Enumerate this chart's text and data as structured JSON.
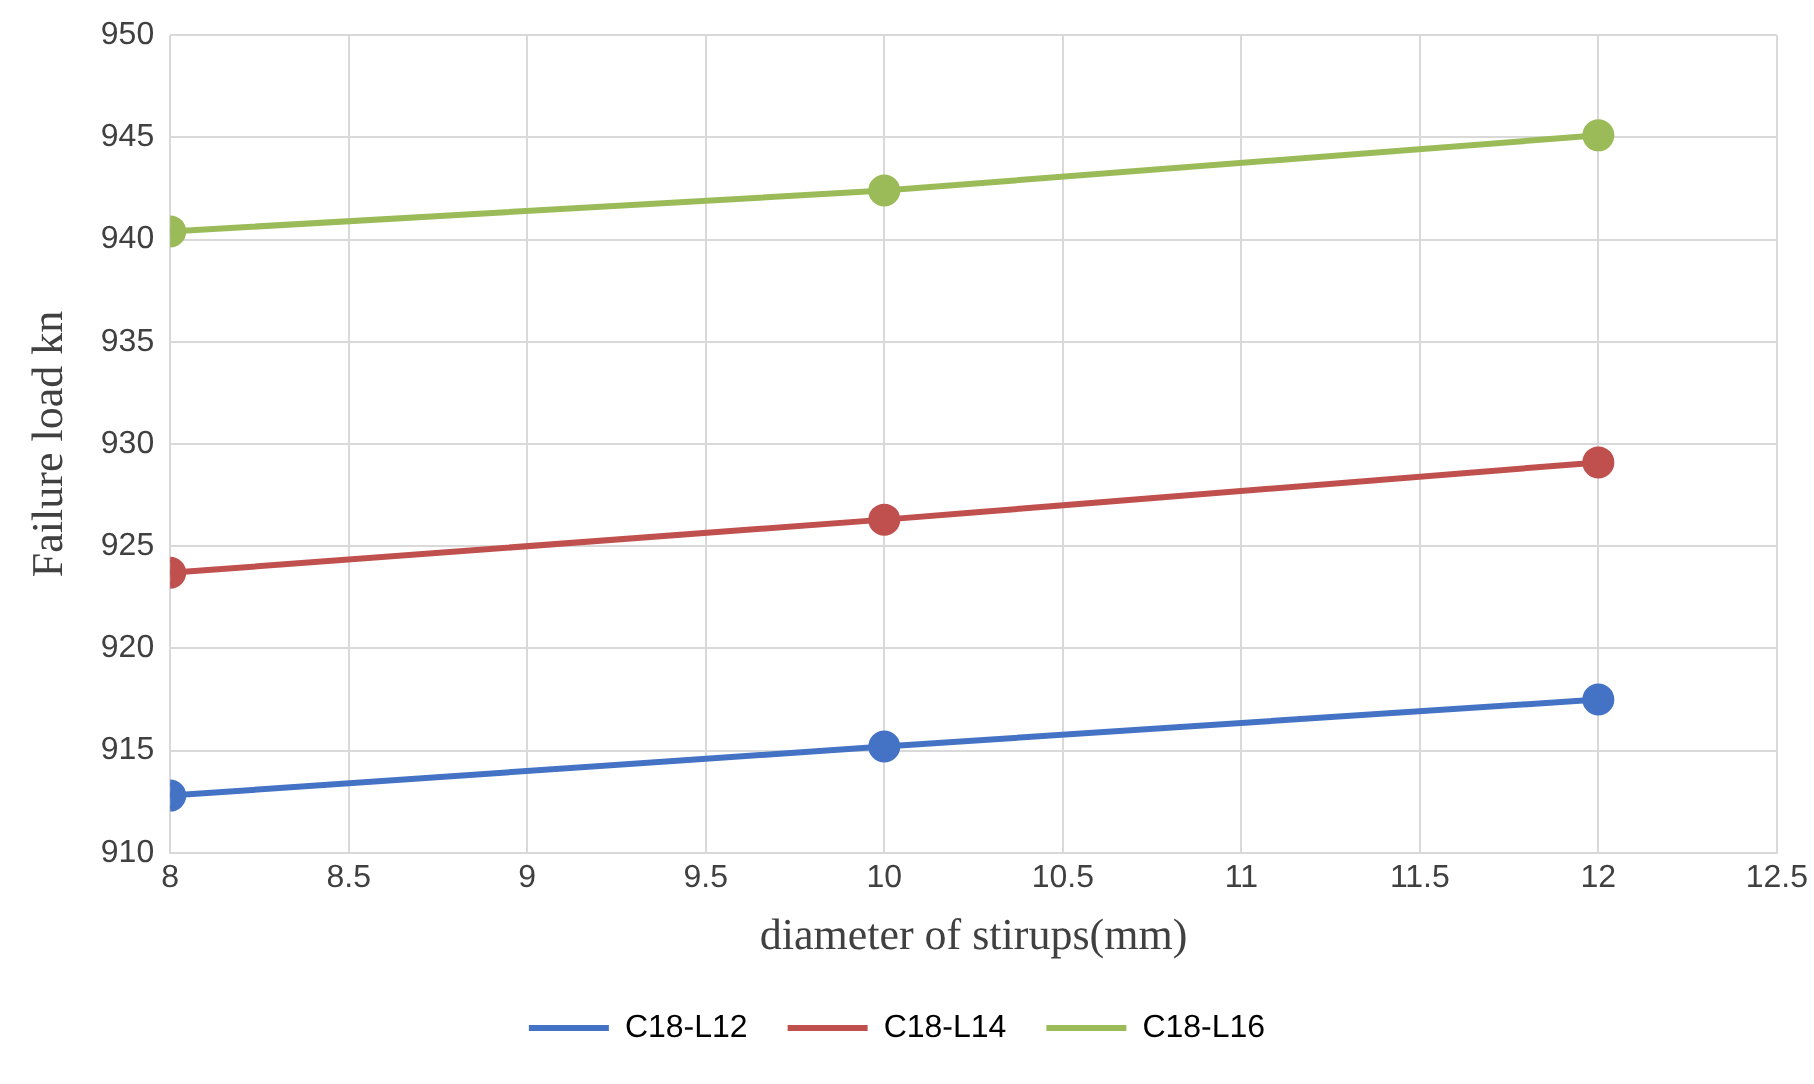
{
  "chart_data": {
    "type": "line",
    "xlabel": "diameter of stirups(mm)",
    "ylabel": "Failure load kn",
    "x": [
      8,
      10,
      12
    ],
    "series": [
      {
        "name": "C18-L12",
        "color": "#4472c4",
        "values": [
          912.8,
          915.2,
          917.5
        ]
      },
      {
        "name": "C18-L14",
        "color": "#c0504d",
        "values": [
          923.7,
          926.3,
          929.1
        ]
      },
      {
        "name": "C18-L16",
        "color": "#9bbb59",
        "values": [
          940.4,
          942.4,
          945.1
        ]
      }
    ],
    "xlim": [
      8,
      12.5
    ],
    "xticks": [
      8,
      8.5,
      9,
      9.5,
      10,
      10.5,
      11,
      11.5,
      12,
      12.5
    ],
    "ylim": [
      910,
      950
    ],
    "yticks": [
      910,
      915,
      920,
      925,
      930,
      935,
      940,
      945,
      950
    ],
    "grid": true,
    "legend": "bottom",
    "marker": "circle",
    "line_style": "solid"
  }
}
